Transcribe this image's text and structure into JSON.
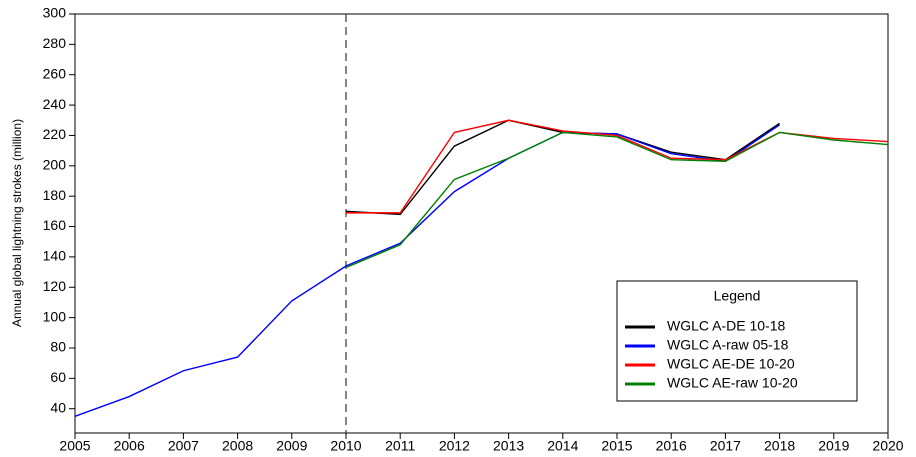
{
  "chart_data": {
    "type": "line",
    "y_label": "Annual global lightning strokes (million)",
    "x": [
      2005,
      2006,
      2007,
      2008,
      2009,
      2010,
      2011,
      2012,
      2013,
      2014,
      2015,
      2016,
      2017,
      2018,
      2019,
      2020
    ],
    "series": [
      {
        "name": "WGLC A-DE 10-18",
        "color": "#000000",
        "values": [
          null,
          null,
          null,
          null,
          null,
          170,
          168,
          213,
          230,
          222,
          221,
          209,
          204,
          228,
          null,
          null
        ]
      },
      {
        "name": "WGLC A-raw 05-18",
        "color": "#0000ff",
        "values": [
          35,
          48,
          65,
          74,
          111,
          134,
          149,
          183,
          205,
          222,
          221,
          208,
          203,
          227,
          null,
          null
        ]
      },
      {
        "name": "WGLC AE-DE 10-20",
        "color": "#ff0000",
        "values": [
          null,
          null,
          null,
          null,
          null,
          169,
          169,
          222,
          230,
          223,
          220,
          205,
          204,
          222,
          218,
          216
        ]
      },
      {
        "name": "WGLC AE-raw 10-20",
        "color": "#008000",
        "values": [
          null,
          null,
          null,
          null,
          null,
          133,
          148,
          191,
          205,
          222,
          219,
          204,
          203,
          222,
          217,
          214
        ]
      }
    ],
    "xlim": [
      2005,
      2020
    ],
    "xticks": [
      2005,
      2006,
      2007,
      2008,
      2009,
      2010,
      2011,
      2012,
      2013,
      2014,
      2015,
      2016,
      2017,
      2018,
      2019,
      2020
    ],
    "ylim": [
      24,
      300
    ],
    "yticks": [
      40,
      60,
      80,
      100,
      120,
      140,
      160,
      180,
      200,
      220,
      240,
      260,
      280,
      300
    ],
    "vline": 2010,
    "legend_title": "Legend",
    "legend_position": "lower right"
  }
}
